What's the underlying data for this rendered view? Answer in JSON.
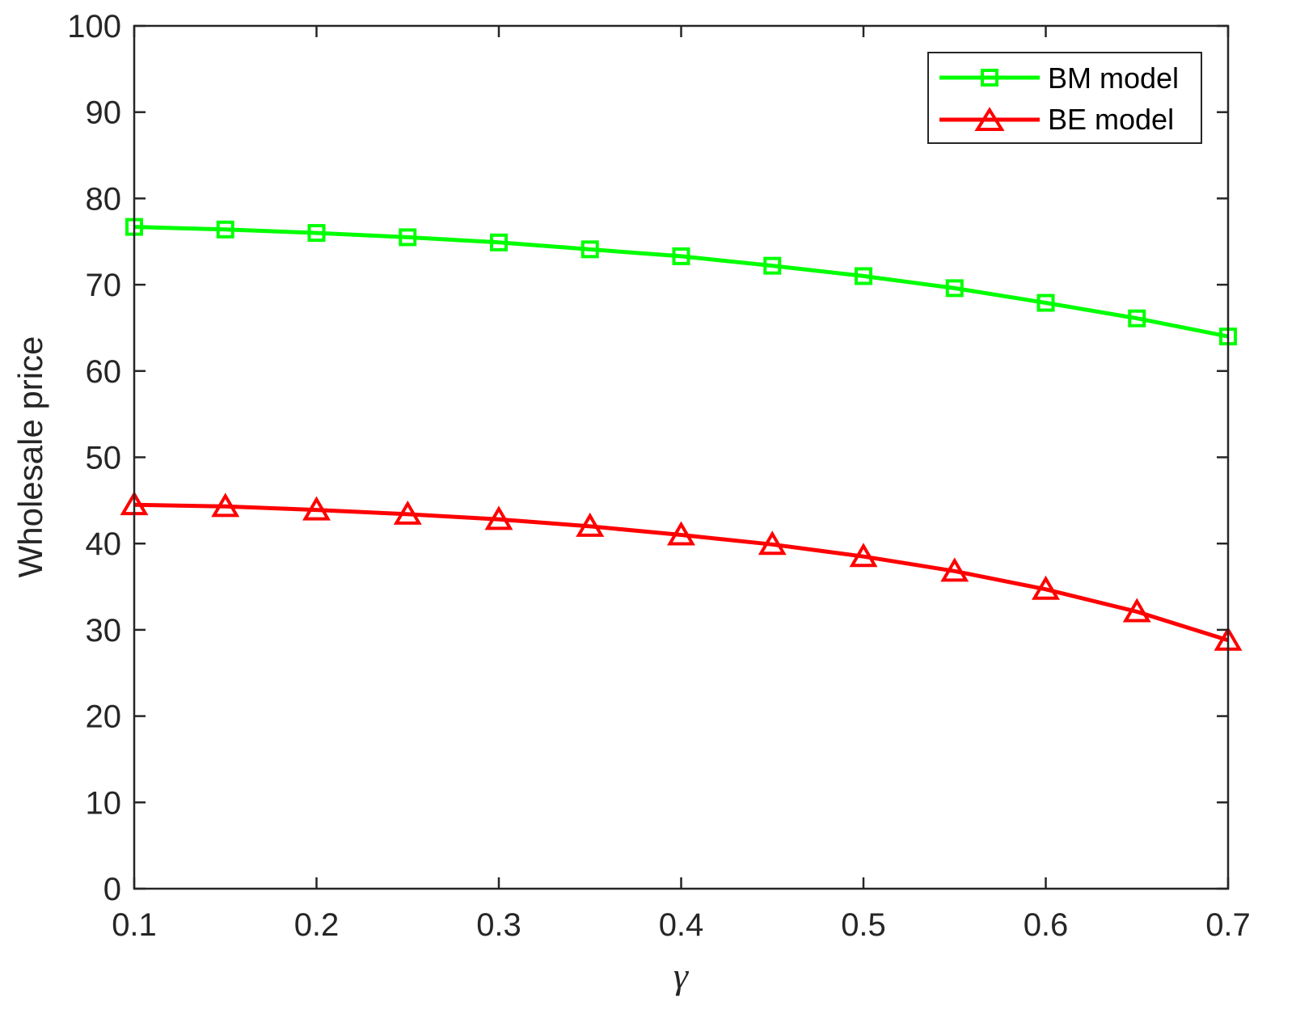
{
  "chart_data": {
    "type": "line",
    "title": "",
    "xlabel": "γ",
    "ylabel": "Wholesale price",
    "xlim": [
      0.1,
      0.7
    ],
    "ylim": [
      0,
      100
    ],
    "xticks": [
      0.1,
      0.2,
      0.3,
      0.4,
      0.5,
      0.6,
      0.7
    ],
    "xtick_labels": [
      "0.1",
      "0.2",
      "0.3",
      "0.4",
      "0.5",
      "0.6",
      "0.7"
    ],
    "yticks": [
      0,
      10,
      20,
      30,
      40,
      50,
      60,
      70,
      80,
      90,
      100
    ],
    "ytick_labels": [
      "0",
      "10",
      "20",
      "30",
      "40",
      "50",
      "60",
      "70",
      "80",
      "90",
      "100"
    ],
    "grid": false,
    "legend_position": "top-right",
    "x": [
      0.1,
      0.15,
      0.2,
      0.25,
      0.3,
      0.35,
      0.4,
      0.45,
      0.5,
      0.55,
      0.6,
      0.65,
      0.7
    ],
    "series": [
      {
        "name": "BM model",
        "color": "#00ff00",
        "marker": "square",
        "values": [
          76.7,
          76.4,
          76.0,
          75.5,
          74.9,
          74.1,
          73.3,
          72.2,
          71.0,
          69.6,
          67.9,
          66.1,
          64.0
        ]
      },
      {
        "name": "BE model",
        "color": "#ff0000",
        "marker": "triangle",
        "values": [
          44.5,
          44.3,
          43.9,
          43.4,
          42.8,
          42.0,
          41.0,
          39.9,
          38.5,
          36.8,
          34.7,
          32.1,
          28.8
        ]
      }
    ]
  }
}
